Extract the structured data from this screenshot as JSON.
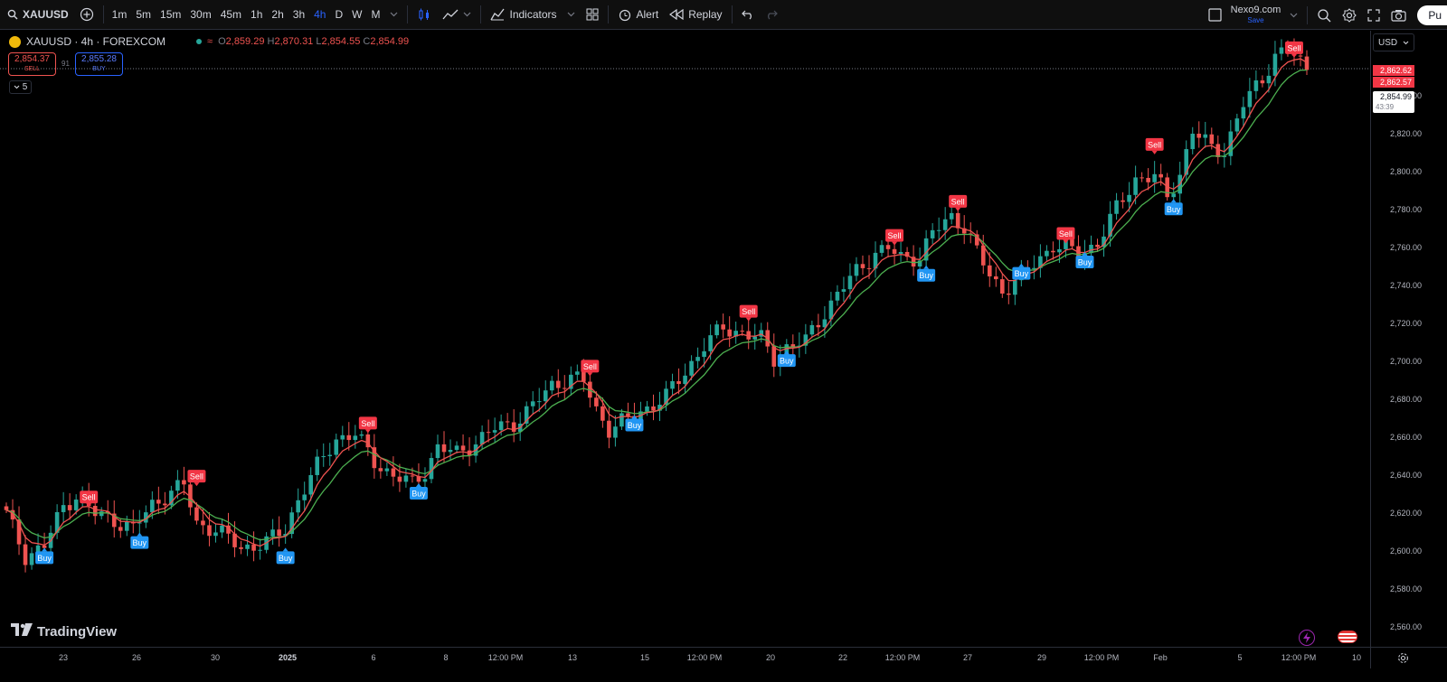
{
  "toolbar": {
    "symbol": "XAUUSD",
    "intervals": [
      "1m",
      "5m",
      "15m",
      "30m",
      "45m",
      "1h",
      "2h",
      "3h",
      "4h",
      "D",
      "W",
      "M"
    ],
    "active_interval": "4h",
    "indicators_label": "Indicators",
    "alert_label": "Alert",
    "replay_label": "Replay",
    "layout_name": "Nexo9.com",
    "layout_save_label": "Save",
    "publish_label": "Pu"
  },
  "legend": {
    "title": "XAUUSD · 4h · FOREXCOM",
    "open_label": "O",
    "open": "2,859.29",
    "high_label": "H",
    "high": "2,870.31",
    "low_label": "L",
    "low": "2,854.55",
    "close_label": "C",
    "close": "2,854.99"
  },
  "trade": {
    "sell_price": "2,854.37",
    "sell_label": "SELL",
    "spread": "91",
    "buy_price": "2,855.28",
    "buy_label": "BUY",
    "collapse_count": "5"
  },
  "price_axis": {
    "currency": "USD",
    "labels": [
      "2,840.00",
      "2,820.00",
      "2,800.00",
      "2,780.00",
      "2,760.00",
      "2,740.00",
      "2,720.00",
      "2,700.00",
      "2,680.00",
      "2,660.00",
      "2,640.00",
      "2,620.00",
      "2,600.00",
      "2,580.00",
      "2,560.00"
    ],
    "tag_1": "2,862.62",
    "tag_2": "2,862.57",
    "current_price": "2,854.99",
    "countdown": "43:39"
  },
  "time_axis": {
    "labels": [
      "23",
      "26",
      "30",
      "2025",
      "6",
      "8",
      "12:00 PM",
      "13",
      "15",
      "12:00 PM",
      "20",
      "22",
      "12:00 PM",
      "27",
      "29",
      "12:00 PM",
      "Feb",
      "5",
      "12:00 PM",
      "10"
    ]
  },
  "brand": {
    "name": "TradingView"
  },
  "colors": {
    "up": "#26a69a",
    "down": "#ef5350",
    "buy_marker": "#2196f3",
    "sell_marker": "#f23645",
    "ema_fast": "#ef5350",
    "ema_slow": "#4caf50"
  },
  "chart_data": {
    "type": "candlestick",
    "symbol": "XAUUSD",
    "timeframe": "4h",
    "ylim": [
      2550,
      2875
    ],
    "signals": [
      {
        "type": "Buy",
        "index": 6,
        "price": 2597
      },
      {
        "type": "Sell",
        "index": 13,
        "price": 2629
      },
      {
        "type": "Buy",
        "index": 21,
        "price": 2605
      },
      {
        "type": "Sell",
        "index": 30,
        "price": 2640
      },
      {
        "type": "Buy",
        "index": 44,
        "price": 2597
      },
      {
        "type": "Sell",
        "index": 57,
        "price": 2668
      },
      {
        "type": "Buy",
        "index": 65,
        "price": 2631
      },
      {
        "type": "Sell",
        "index": 92,
        "price": 2698
      },
      {
        "type": "Buy",
        "index": 99,
        "price": 2667
      },
      {
        "type": "Sell",
        "index": 117,
        "price": 2727
      },
      {
        "type": "Buy",
        "index": 123,
        "price": 2701
      },
      {
        "type": "Sell",
        "index": 140,
        "price": 2767
      },
      {
        "type": "Buy",
        "index": 145,
        "price": 2746
      },
      {
        "type": "Sell",
        "index": 150,
        "price": 2785
      },
      {
        "type": "Buy",
        "index": 160,
        "price": 2747
      },
      {
        "type": "Sell",
        "index": 167,
        "price": 2768
      },
      {
        "type": "Buy",
        "index": 170,
        "price": 2753
      },
      {
        "type": "Sell",
        "index": 181,
        "price": 2815
      },
      {
        "type": "Buy",
        "index": 184,
        "price": 2781
      },
      {
        "type": "Sell",
        "index": 203,
        "price": 2866
      }
    ],
    "waypoints": [
      [
        0,
        2620
      ],
      [
        3,
        2598
      ],
      [
        6,
        2603
      ],
      [
        9,
        2624
      ],
      [
        11,
        2630
      ],
      [
        14,
        2620
      ],
      [
        17,
        2617
      ],
      [
        20,
        2612
      ],
      [
        23,
        2625
      ],
      [
        26,
        2632
      ],
      [
        28,
        2635
      ],
      [
        30,
        2615
      ],
      [
        33,
        2612
      ],
      [
        37,
        2602
      ],
      [
        41,
        2605
      ],
      [
        44,
        2612
      ],
      [
        46,
        2628
      ],
      [
        49,
        2645
      ],
      [
        52,
        2660
      ],
      [
        55,
        2662
      ],
      [
        58,
        2648
      ],
      [
        61,
        2640
      ],
      [
        64,
        2636
      ],
      [
        66,
        2643
      ],
      [
        68,
        2655
      ],
      [
        71,
        2652
      ],
      [
        74,
        2658
      ],
      [
        77,
        2665
      ],
      [
        80,
        2668
      ],
      [
        83,
        2677
      ],
      [
        86,
        2688
      ],
      [
        89,
        2692
      ],
      [
        91,
        2690
      ],
      [
        93,
        2675
      ],
      [
        95,
        2665
      ],
      [
        98,
        2670
      ],
      [
        101,
        2676
      ],
      [
        104,
        2682
      ],
      [
        107,
        2695
      ],
      [
        110,
        2709
      ],
      [
        113,
        2718
      ],
      [
        116,
        2716
      ],
      [
        119,
        2712
      ],
      [
        121,
        2702
      ],
      [
        123,
        2708
      ],
      [
        126,
        2711
      ],
      [
        128,
        2722
      ],
      [
        131,
        2736
      ],
      [
        134,
        2748
      ],
      [
        137,
        2758
      ],
      [
        139,
        2760
      ],
      [
        141,
        2755
      ],
      [
        144,
        2756
      ],
      [
        146,
        2768
      ],
      [
        149,
        2777
      ],
      [
        151,
        2772
      ],
      [
        153,
        2758
      ],
      [
        155,
        2746
      ],
      [
        157,
        2738
      ],
      [
        160,
        2745
      ],
      [
        162,
        2752
      ],
      [
        165,
        2762
      ],
      [
        167,
        2760
      ],
      [
        169,
        2757
      ],
      [
        172,
        2763
      ],
      [
        175,
        2781
      ],
      [
        178,
        2797
      ],
      [
        181,
        2798
      ],
      [
        183,
        2787
      ],
      [
        185,
        2800
      ],
      [
        187,
        2822
      ],
      [
        190,
        2813
      ],
      [
        192,
        2812
      ],
      [
        195,
        2836
      ],
      [
        198,
        2850
      ],
      [
        200,
        2862
      ],
      [
        202,
        2865
      ],
      [
        204,
        2858
      ],
      [
        205,
        2855
      ]
    ]
  }
}
